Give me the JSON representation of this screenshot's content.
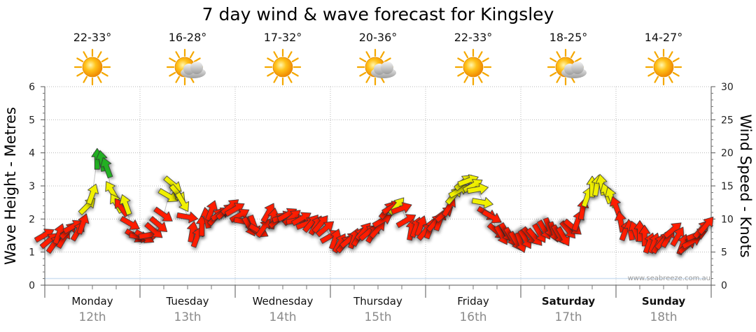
{
  "chart_data": {
    "type": "line",
    "title": "7 day wind & wave forecast for Kingsley",
    "ylabel_left": "Wave Height - Metres",
    "ylabel_right": "Wind Speed - Knots",
    "ylim_left": [
      0,
      6
    ],
    "ylim_right": [
      0,
      30
    ],
    "yticks_left": [
      "0",
      "1",
      "2",
      "3",
      "4",
      "5",
      "6"
    ],
    "yticks_right": [
      "0",
      "5",
      "10",
      "15",
      "20",
      "25",
      "30"
    ],
    "grid": true,
    "credit": "www.seabreeze.com.au",
    "days": [
      {
        "name": "Monday",
        "date": "12th",
        "temp": "22-33°",
        "weather": "sunny",
        "bold": false
      },
      {
        "name": "Tuesday",
        "date": "13th",
        "temp": "16-28°",
        "weather": "partly-cloudy",
        "bold": false
      },
      {
        "name": "Wednesday",
        "date": "14th",
        "temp": "17-32°",
        "weather": "sunny",
        "bold": false
      },
      {
        "name": "Thursday",
        "date": "15th",
        "temp": "20-36°",
        "weather": "partly-cloudy",
        "bold": false
      },
      {
        "name": "Friday",
        "date": "16th",
        "temp": "22-33°",
        "weather": "sunny",
        "bold": false
      },
      {
        "name": "Saturday",
        "date": "17th",
        "temp": "18-25°",
        "weather": "partly-cloudy",
        "bold": true
      },
      {
        "name": "Sunday",
        "date": "18th",
        "temp": "14-27°",
        "weather": "sunny",
        "bold": true
      }
    ],
    "series": [
      {
        "name": "Wind speed (knots) & direction",
        "x_day": [
          0.0,
          0.05,
          0.1,
          0.15,
          0.2,
          0.25,
          0.3,
          0.35,
          0.4,
          0.45,
          0.5,
          0.55,
          0.6,
          0.65,
          0.7,
          0.75,
          0.8,
          0.85,
          0.9,
          0.95,
          1.0,
          1.05,
          1.1,
          1.15,
          1.2,
          1.25,
          1.3,
          1.35,
          1.4,
          1.45,
          1.5,
          1.55,
          1.6,
          1.65,
          1.7,
          1.75,
          1.8,
          1.85,
          1.9,
          1.95,
          2.0,
          2.05,
          2.1,
          2.15,
          2.2,
          2.25,
          2.3,
          2.35,
          2.4,
          2.45,
          2.5,
          2.55,
          2.6,
          2.65,
          2.7,
          2.75,
          2.8,
          2.85,
          2.9,
          2.95,
          3.0,
          3.05,
          3.1,
          3.15,
          3.2,
          3.25,
          3.3,
          3.35,
          3.4,
          3.45,
          3.5,
          3.55,
          3.6,
          3.65,
          3.7,
          3.75,
          3.8,
          3.85,
          3.9,
          3.95,
          4.0,
          4.05,
          4.1,
          4.15,
          4.2,
          4.25,
          4.3,
          4.35,
          4.4,
          4.45,
          4.5,
          4.55,
          4.6,
          4.65,
          4.7,
          4.75,
          4.8,
          4.85,
          4.9,
          4.95,
          5.0,
          5.05,
          5.1,
          5.15,
          5.2,
          5.25,
          5.3,
          5.35,
          5.4,
          5.45,
          5.5,
          5.55,
          5.6,
          5.65,
          5.7,
          5.75,
          5.8,
          5.85,
          5.9,
          5.95,
          6.0,
          6.05,
          6.1,
          6.15,
          6.2,
          6.25,
          6.3,
          6.35,
          6.4,
          6.45,
          6.5,
          6.55,
          6.6,
          6.65,
          6.7,
          6.75,
          6.8,
          6.85,
          6.9,
          6.95
        ],
        "knots": [
          7.6,
          6.8,
          6.3,
          7.8,
          7.1,
          8.3,
          8.9,
          8.2,
          9.3,
          12.0,
          13.8,
          19.1,
          18.8,
          17.8,
          14.3,
          12.4,
          11.8,
          12.2,
          9.3,
          7.4,
          7.3,
          7.3,
          7.6,
          8.2,
          9.1,
          10.6,
          13.5,
          15.2,
          13.8,
          12.5,
          10.3,
          8.1,
          7.3,
          9.0,
          10.2,
          11.3,
          10.4,
          10.8,
          11.2,
          11.9,
          11.5,
          10.6,
          9.6,
          8.8,
          9.0,
          8.2,
          8.7,
          11.0,
          10.1,
          9.9,
          10.3,
          10.7,
          10.3,
          9.8,
          10.1,
          9.3,
          9.4,
          9.1,
          9.3,
          8.6,
          7.4,
          7.0,
          6.4,
          6.3,
          6.9,
          7.1,
          7.4,
          8.2,
          8.0,
          7.9,
          8.5,
          9.8,
          11.4,
          11.8,
          12.0,
          11.6,
          9.8,
          8.4,
          8.8,
          9.0,
          8.2,
          8.6,
          9.5,
          9.8,
          10.8,
          11.9,
          13.6,
          14.3,
          15.6,
          15.8,
          15.1,
          14.5,
          12.5,
          10.8,
          10.3,
          8.1,
          7.5,
          7.9,
          7.2,
          6.6,
          6.4,
          6.9,
          7.4,
          7.2,
          7.8,
          8.3,
          8.6,
          8.0,
          7.6,
          7.3,
          8.3,
          8.7,
          9.8,
          11.5,
          13.4,
          14.9,
          15.1,
          15.2,
          13.9,
          13.3,
          11.9,
          9.6,
          8.3,
          8.4,
          8.2,
          8.2,
          7.5,
          6.4,
          6.4,
          6.3,
          6.8,
          7.2,
          8.4,
          7.4,
          6.2,
          6.0,
          6.6,
          7.6,
          8.5,
          9.1
        ],
        "direction_deg": [
          240,
          230,
          215,
          200,
          210,
          225,
          240,
          210,
          200,
          225,
          200,
          180,
          170,
          160,
          150,
          150,
          145,
          160,
          300,
          300,
          280,
          300,
          260,
          310,
          310,
          305,
          300,
          310,
          320,
          330,
          280,
          190,
          200,
          180,
          170,
          200,
          220,
          240,
          230,
          230,
          240,
          240,
          280,
          330,
          340,
          300,
          215,
          210,
          190,
          230,
          250,
          240,
          230,
          260,
          240,
          250,
          220,
          210,
          220,
          230,
          240,
          200,
          210,
          220,
          230,
          200,
          210,
          220,
          230,
          210,
          220,
          240,
          220,
          240,
          220,
          250,
          240,
          190,
          200,
          200,
          220,
          200,
          220,
          200,
          230,
          210,
          220,
          240,
          230,
          250,
          240,
          260,
          280,
          300,
          300,
          310,
          330,
          330,
          330,
          330,
          340,
          330,
          320,
          320,
          330,
          330,
          340,
          340,
          330,
          330,
          320,
          310,
          200,
          190,
          200,
          180,
          190,
          170,
          160,
          160,
          160,
          170,
          200,
          170,
          160,
          180,
          180,
          200,
          200,
          210,
          220,
          210,
          230,
          210,
          200,
          230,
          240,
          250,
          220,
          220
        ]
      },
      {
        "name": "Wave height (m)",
        "x_day": [
          0.0,
          0.5,
          1.0,
          1.5,
          2.0,
          2.5,
          3.0,
          3.5,
          4.0,
          4.5,
          5.0,
          5.5,
          6.0,
          6.5,
          6.95
        ],
        "height_m": [
          0.2,
          0.2,
          0.2,
          0.2,
          0.2,
          0.2,
          0.2,
          0.2,
          0.2,
          0.2,
          0.2,
          0.2,
          0.2,
          0.2,
          0.2
        ]
      }
    ]
  }
}
